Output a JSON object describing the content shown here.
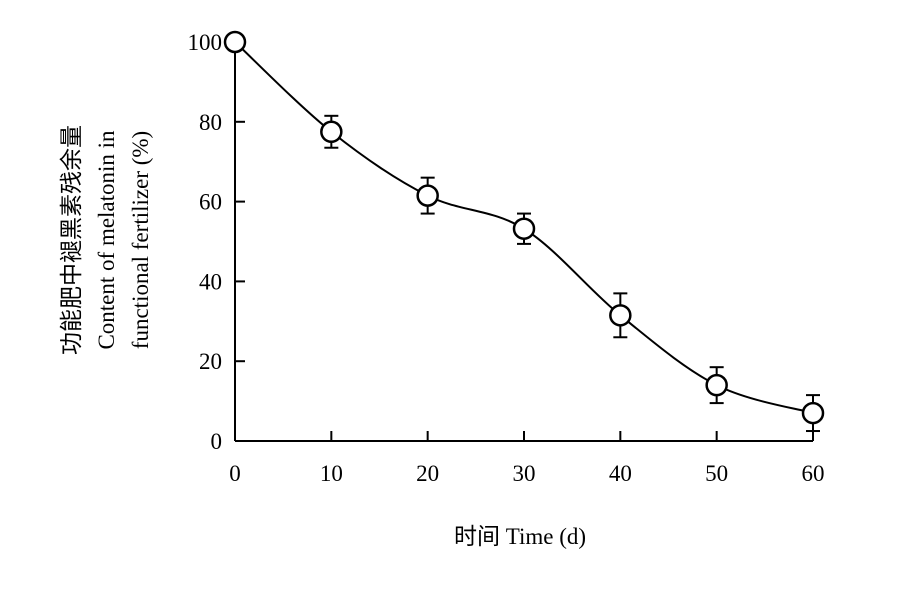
{
  "chart_data": {
    "type": "line",
    "xlabel": "时间 Time (d)",
    "ylabel_lines": [
      "功能肥中褪黑素残余量",
      "Content of melatonin in",
      "functional fertilizer (%)"
    ],
    "xlim": [
      0,
      60
    ],
    "ylim": [
      0,
      100
    ],
    "xticks": [
      "0",
      "10",
      "20",
      "30",
      "40",
      "50",
      "60"
    ],
    "yticks": [
      "0",
      "20",
      "40",
      "60",
      "80",
      "100"
    ],
    "grid": false,
    "series": [
      {
        "x": [
          0,
          10,
          20,
          30,
          40,
          50,
          60
        ],
        "y": [
          100,
          77.5,
          61.5,
          53.2,
          31.5,
          14,
          7
        ],
        "error": [
          0,
          4,
          4.5,
          3.8,
          5.5,
          4.5,
          4.5
        ],
        "marker": "open-circle"
      }
    ]
  }
}
